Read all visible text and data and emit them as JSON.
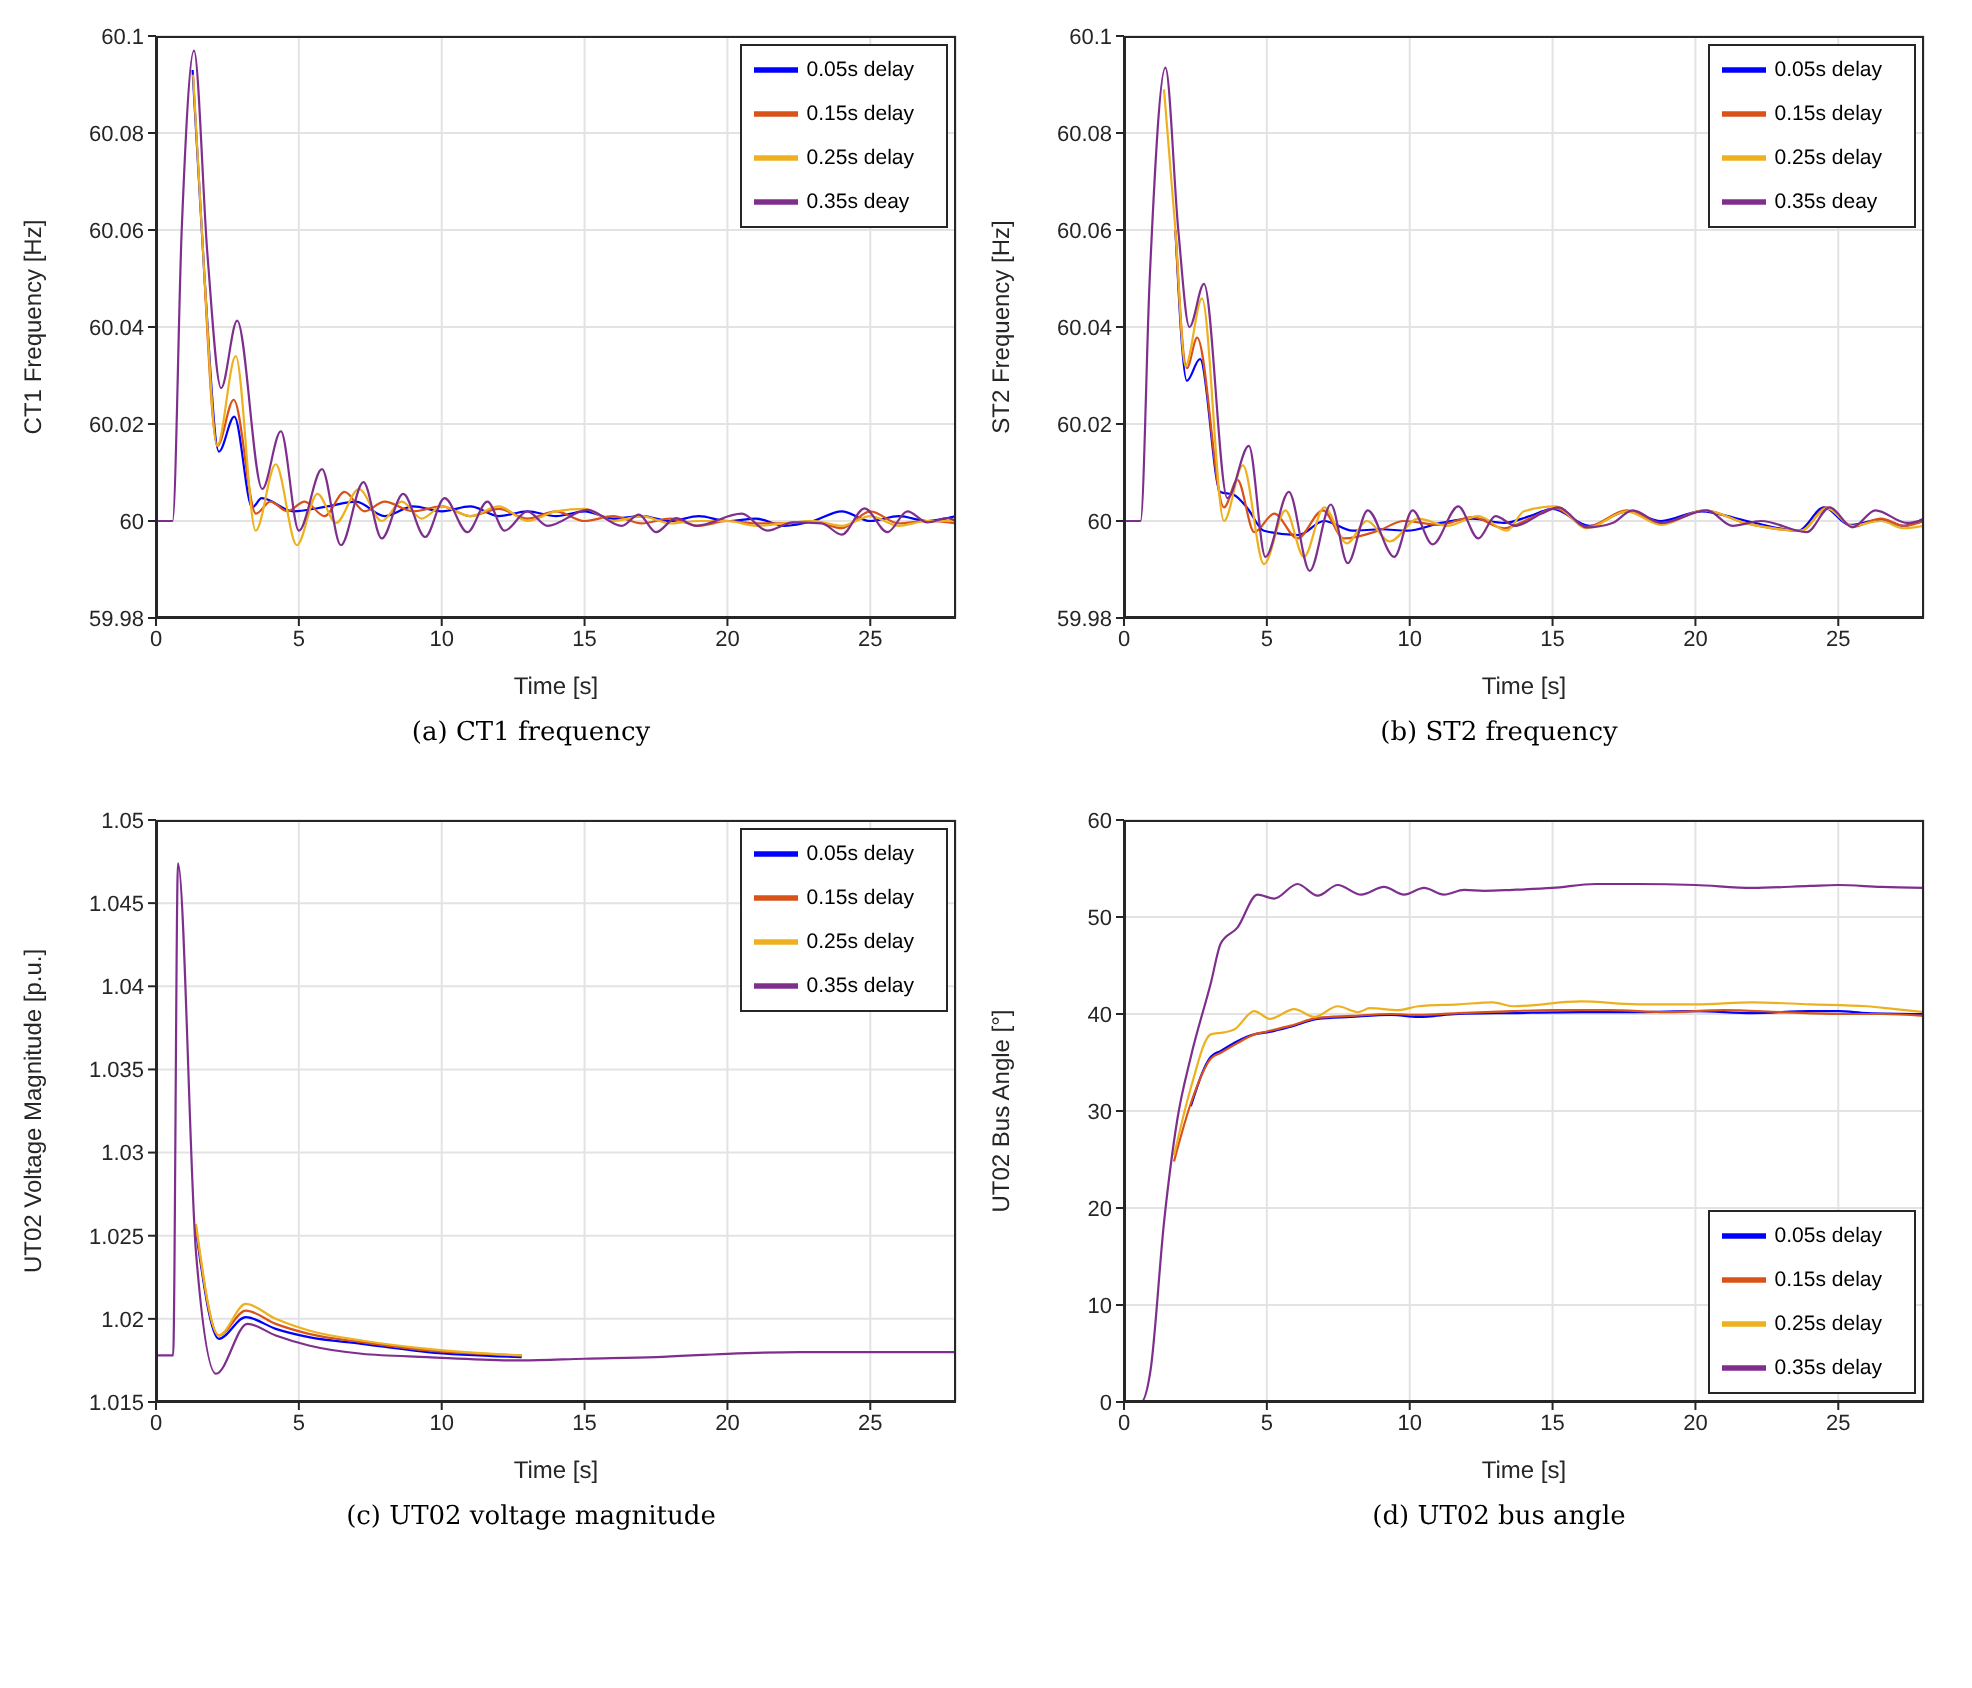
{
  "chart_data": [
    {
      "type": "line",
      "xlabel": "Time [s]",
      "ylabel": "CT1 Frequency [Hz]",
      "annotations": [
        "(a) CT1 frequency"
      ],
      "xlim": [
        0,
        28
      ],
      "xticks": [
        0,
        5,
        10,
        15,
        20,
        25
      ],
      "ylim": [
        59.98,
        60.1
      ],
      "yticks": [
        59.98,
        60,
        60.02,
        60.04,
        60.06,
        60.08,
        60.1
      ],
      "grid": true,
      "legend": "top right",
      "series": [
        {
          "name": "0.05s delay",
          "color": "#0000ff",
          "x": [
            1.28,
            1.7,
            2.2,
            2.74,
            3.37,
            3.7,
            4.8,
            6,
            7,
            8,
            9,
            10,
            11,
            12,
            13,
            14,
            15,
            16,
            17,
            18,
            19,
            20,
            21,
            22,
            23,
            24,
            25,
            26,
            27,
            28
          ],
          "values": [
            60.093,
            60.05,
            60.0143,
            60.0215,
            60.0028,
            60.0047,
            60.002,
            60.003,
            60.004,
            60.001,
            60.003,
            60.002,
            60.003,
            60.001,
            60.002,
            60.001,
            60.002,
            60.0005,
            60.001,
            60.0,
            60.001,
            60.0,
            60.0005,
            59.999,
            60.0,
            60.002,
            60.0,
            60.001,
            60.0,
            60.001
          ]
        },
        {
          "name": "0.15s delay",
          "color": "#d95319",
          "x": [
            1.7,
            2.15,
            2.72,
            3.5,
            4.0,
            4.6,
            5.2,
            5.9,
            6.6,
            7.3,
            8,
            9,
            10,
            11,
            12,
            13,
            14,
            15,
            16,
            17,
            18,
            19,
            20,
            21,
            22,
            23,
            24,
            25,
            26,
            27,
            28
          ],
          "values": [
            60.05,
            60.0155,
            60.025,
            60.0015,
            60.004,
            60.002,
            60.004,
            60.001,
            60.006,
            60.002,
            60.004,
            60.002,
            60.003,
            60.001,
            60.0025,
            60.0005,
            60.002,
            60.0,
            60.001,
            59.9995,
            60.0005,
            59.999,
            60.0,
            59.9995,
            59.9995,
            60.0,
            59.9985,
            60.002,
            59.9995,
            60.0,
            59.9995
          ]
        },
        {
          "name": "0.25s delay",
          "color": "#edb120",
          "x": [
            1.3,
            1.7,
            2.14,
            2.79,
            3.49,
            4.19,
            4.93,
            5.65,
            6.3,
            7.1,
            7.9,
            8.6,
            9.3,
            10,
            11,
            12,
            13,
            14,
            15,
            16,
            17,
            18,
            19,
            20,
            21,
            22,
            23,
            24,
            25,
            26,
            27,
            28
          ],
          "values": [
            60.092,
            60.05,
            60.0155,
            60.034,
            59.998,
            60.0117,
            59.995,
            60.0056,
            59.9996,
            60.0066,
            60.0,
            60.004,
            60.0005,
            60.003,
            60.001,
            60.003,
            60.0,
            60.002,
            60.0025,
            60.0,
            60.001,
            59.9995,
            60.0,
            60.0,
            59.999,
            59.9995,
            60.0,
            59.999,
            60.001,
            59.999,
            60.0,
            60.0
          ]
        },
        {
          "name": "0.35s deay",
          "color": "#7e2f8e",
          "x": [
            0,
            0.58,
            0.9,
            1.33,
            1.8,
            2.28,
            2.84,
            3.72,
            4.37,
            5.0,
            5.81,
            6.47,
            7.26,
            7.9,
            8.65,
            9.42,
            10.1,
            10.9,
            11.6,
            12.2,
            13.0,
            13.7,
            15.1,
            16.3,
            16.9,
            17.5,
            18.2,
            18.9,
            20.5,
            21.4,
            22.3,
            23.3,
            24.0,
            24.8,
            25.6,
            26.3,
            27.0,
            27.7,
            28
          ],
          "values": [
            60,
            60,
            60.06,
            60.097,
            60.055,
            60.0274,
            60.0413,
            60.0066,
            60.0185,
            59.998,
            60.0107,
            59.995,
            60.008,
            59.9964,
            60.0056,
            59.9967,
            60.0047,
            59.9977,
            60.004,
            59.998,
            60.002,
            59.999,
            60.0023,
            59.999,
            60.0013,
            59.9977,
            60.0006,
            59.999,
            60.0015,
            59.998,
            59.9997,
            59.9995,
            59.9972,
            60.0026,
            59.9977,
            60.002,
            59.9997,
            60.0006,
            60.0
          ]
        }
      ]
    },
    {
      "type": "line",
      "xlabel": "Time [s]",
      "ylabel": "ST2 Frequency [Hz]",
      "annotations": [
        "(b) ST2 frequency"
      ],
      "xlim": [
        0,
        28
      ],
      "xticks": [
        0,
        5,
        10,
        15,
        20,
        25
      ],
      "ylim": [
        59.98,
        60.1
      ],
      "yticks": [
        59.98,
        60,
        60.02,
        60.04,
        60.06,
        60.08,
        60.1
      ],
      "grid": true,
      "legend": "top right",
      "series": [
        {
          "name": "0.05s delay",
          "color": "#0000ff",
          "x": [
            1.8,
            2.2,
            2.66,
            3.37,
            3.84,
            4.3,
            4.9,
            6.1,
            7,
            8,
            9,
            9.9,
            11.1,
            12.2,
            13.3,
            14.2,
            15.0,
            16.3,
            17.6,
            18.8,
            20.2,
            21.8,
            23.6,
            24.5,
            25.4,
            26.5,
            27.3,
            28
          ],
          "values": [
            60.06,
            60.0289,
            60.0334,
            60.006,
            60.0054,
            60.0028,
            59.998,
            59.9971,
            60,
            59.998,
            59.9983,
            59.998,
            59.9996,
            60.0005,
            59.9996,
            60.001,
            60.0025,
            59.999,
            60.002,
            60,
            60.002,
            60,
            59.998,
            60.0028,
            59.9992,
            60.0003,
            59.999,
            60.0005
          ]
        },
        {
          "name": "0.15s delay",
          "color": "#d95319",
          "x": [
            1.8,
            2.2,
            2.56,
            3.5,
            3.97,
            4.56,
            5.26,
            6.07,
            6.96,
            7.7,
            8.9,
            9.8,
            11,
            12.2,
            13.3,
            14.2,
            15.1,
            16.2,
            17.6,
            18.8,
            20.3,
            21.8,
            23.7,
            24.6,
            25.5,
            26.5,
            27.3,
            28
          ],
          "values": [
            60.06,
            60.0315,
            60.0378,
            60.0028,
            60.0085,
            59.9977,
            60.0015,
            59.9964,
            60.0022,
            59.9964,
            59.998,
            60.0,
            59.9992,
            60.0008,
            59.9985,
            60.0005,
            60.0026,
            59.9988,
            60.0022,
            59.9995,
            60.0022,
            59.9995,
            59.998,
            60.0028,
            59.9988,
            60.0005,
            59.999,
            60.0
          ]
        },
        {
          "name": "0.25s delay",
          "color": "#edb120",
          "x": [
            1.4,
            1.8,
            2.15,
            2.73,
            3.5,
            4.16,
            4.9,
            5.65,
            6.3,
            7.0,
            7.8,
            8.5,
            9.3,
            10.3,
            11.3,
            12.4,
            13.4,
            14.0,
            15.1,
            16.2,
            17.6,
            18.8,
            20.3,
            21.8,
            23.7,
            24.6,
            25.5,
            26.5,
            27.3,
            28
          ],
          "values": [
            60.089,
            60.06,
            60.032,
            60.0459,
            60.0,
            60.0115,
            59.9911,
            60.0022,
            59.9926,
            60.0028,
            59.9954,
            60.0,
            59.9958,
            60.0005,
            59.999,
            60.001,
            59.998,
            60.002,
            60.003,
            59.9985,
            60.002,
            59.9992,
            60.0022,
            59.9995,
            59.998,
            60.0026,
            59.999,
            60.0,
            59.9985,
            59.999
          ]
        },
        {
          "name": "0.35s deay",
          "color": "#7e2f8e",
          "x": [
            0,
            0.58,
            0.9,
            1.45,
            1.9,
            2.29,
            2.8,
            3.62,
            4.37,
            4.95,
            5.77,
            6.5,
            7.24,
            7.83,
            8.53,
            9.46,
            10.1,
            10.8,
            11.7,
            12.4,
            13.0,
            13.7,
            14.6,
            15.2,
            16.2,
            17.1,
            17.8,
            18.8,
            20.4,
            21.3,
            22.3,
            23.9,
            24.7,
            25.5,
            26.3,
            27.4,
            28
          ],
          "values": [
            60,
            60,
            60.05,
            60.0935,
            60.06,
            60.04,
            60.0489,
            60.0047,
            60.0155,
            59.9926,
            60.006,
            59.9897,
            60.0034,
            59.9913,
            60.0022,
            59.9926,
            60.0022,
            59.9952,
            60.003,
            59.9964,
            60.001,
            59.999,
            60.0015,
            60.0028,
            59.9987,
            59.9996,
            60.0022,
            59.9996,
            60.0022,
            59.999,
            60.0,
            59.9977,
            60.0028,
            59.9987,
            60.0022,
            59.9996,
            60.0003
          ]
        }
      ]
    },
    {
      "type": "line",
      "xlabel": "Time [s]",
      "ylabel": "UT02 Voltage Magnitude [p.u.]",
      "annotations": [
        "(c) UT02 voltage magnitude"
      ],
      "xlim": [
        0,
        28
      ],
      "xticks": [
        0,
        5,
        10,
        15,
        20,
        25
      ],
      "ylim": [
        1.015,
        1.05
      ],
      "yticks": [
        1.015,
        1.02,
        1.025,
        1.03,
        1.035,
        1.04,
        1.045,
        1.05
      ],
      "grid": true,
      "legend": "top right",
      "series": [
        {
          "name": "0.05s delay",
          "color": "#0000ff",
          "x": [
            1.4,
            2.2,
            3.14,
            4.19,
            5.35,
            7.2,
            9.5,
            12.8
          ],
          "values": [
            1.0253,
            1.0188,
            1.0201,
            1.0194,
            1.0189,
            1.0185,
            1.018,
            1.0177
          ]
        },
        {
          "name": "0.15s delay",
          "color": "#d95319",
          "x": [
            1.4,
            2.2,
            3.14,
            4.19,
            5.35,
            7.2,
            9.5,
            12.8
          ],
          "values": [
            1.0255,
            1.019,
            1.0205,
            1.0197,
            1.0191,
            1.0186,
            1.0181,
            1.0178
          ]
        },
        {
          "name": "0.25s delay",
          "color": "#edb120",
          "x": [
            1.4,
            2.2,
            3.14,
            4.19,
            5.35,
            7.2,
            9.5,
            12.8
          ],
          "values": [
            1.0257,
            1.019,
            1.0209,
            1.02,
            1.0193,
            1.0187,
            1.0182,
            1.0178
          ]
        },
        {
          "name": "0.35s delay",
          "color": "#7e2f8e",
          "x": [
            0,
            0.6,
            0.77,
            1.4,
            2.1,
            3.2,
            4.19,
            5.35,
            7.2,
            9.5,
            12.8,
            15,
            17.5,
            20,
            22.5,
            25,
            28
          ],
          "values": [
            1.0178,
            1.0178,
            1.0474,
            1.024,
            1.0167,
            1.0197,
            1.019,
            1.0184,
            1.0179,
            1.0177,
            1.0175,
            1.0176,
            1.0177,
            1.0179,
            1.018,
            1.018,
            1.018
          ]
        }
      ]
    },
    {
      "type": "line",
      "xlabel": "Time [s]",
      "ylabel": "UT02 Bus Angle [°]",
      "annotations": [
        "(d) UT02 bus angle"
      ],
      "xlim": [
        0,
        28
      ],
      "xticks": [
        0,
        5,
        10,
        15,
        20,
        25
      ],
      "ylim": [
        0,
        60
      ],
      "yticks": [
        0,
        10,
        20,
        30,
        40,
        50,
        60
      ],
      "grid": true,
      "legend": "bottom right",
      "series": [
        {
          "name": "0.05s delay",
          "color": "#0000ff",
          "x": [
            2.34,
            3.04,
            3.39,
            3.97,
            4.56,
            5.0,
            5.84,
            6.78,
            7.94,
            9.35,
            10.3,
            11.7,
            13.6,
            16,
            18,
            20,
            22,
            24,
            25,
            26,
            28
          ],
          "values": [
            30.5,
            35.6,
            36.2,
            37.2,
            37.9,
            38.1,
            38.7,
            39.5,
            39.7,
            39.9,
            39.7,
            40,
            40.1,
            40.2,
            40.2,
            40.3,
            40.1,
            40.3,
            40.3,
            40.1,
            40.0
          ]
        },
        {
          "name": "0.15s delay",
          "color": "#d95319",
          "x": [
            1.75,
            2.34,
            3.04,
            3.39,
            3.97,
            4.56,
            5.0,
            5.84,
            6.78,
            7.94,
            9.35,
            10.3,
            11.7,
            13.6,
            15,
            17,
            19,
            21,
            23,
            25,
            26.5,
            28
          ],
          "values": [
            24.8,
            30.8,
            35.4,
            36.0,
            37.0,
            37.9,
            38.2,
            38.8,
            39.6,
            39.8,
            40.0,
            39.9,
            40.1,
            40.3,
            40.4,
            40.4,
            40.2,
            40.4,
            40.2,
            40.0,
            40.0,
            39.8
          ]
        },
        {
          "name": "0.25s delay",
          "color": "#edb120",
          "x": [
            1.75,
            2.34,
            3.04,
            3.5,
            3.86,
            4.56,
            5.1,
            5.96,
            6.66,
            7.48,
            8.2,
            8.6,
            9.6,
            10.3,
            11.7,
            12.9,
            13.6,
            16,
            18,
            20,
            22,
            24,
            26,
            27,
            28
          ],
          "values": [
            25.4,
            32.4,
            37.9,
            38.1,
            38.4,
            40.3,
            39.5,
            40.5,
            39.7,
            40.8,
            40.2,
            40.6,
            40.4,
            40.8,
            41,
            41.2,
            40.8,
            41.3,
            41,
            41,
            41.2,
            41,
            40.8,
            40.5,
            40.2
          ]
        },
        {
          "name": "0.35s delay",
          "color": "#7e2f8e",
          "x": [
            0,
            0.6,
            0.93,
            1.4,
            1.87,
            2.34,
            3.04,
            3.39,
            3.97,
            4.67,
            5.26,
            6.07,
            6.78,
            7.48,
            8.3,
            9.1,
            9.8,
            10.5,
            11.2,
            11.9,
            12.6,
            13.6,
            15,
            16.5,
            18,
            20,
            22,
            24,
            25,
            26.5,
            28
          ],
          "values": [
            0,
            0,
            3.3,
            18.5,
            29.2,
            35.6,
            43.2,
            47.3,
            48.9,
            52.3,
            51.9,
            53.4,
            52.2,
            53.3,
            52.3,
            53.1,
            52.3,
            53,
            52.3,
            52.8,
            52.7,
            52.8,
            53,
            53.4,
            53.4,
            53.3,
            53.0,
            53.2,
            53.3,
            53.1,
            53.0
          ]
        }
      ]
    }
  ]
}
